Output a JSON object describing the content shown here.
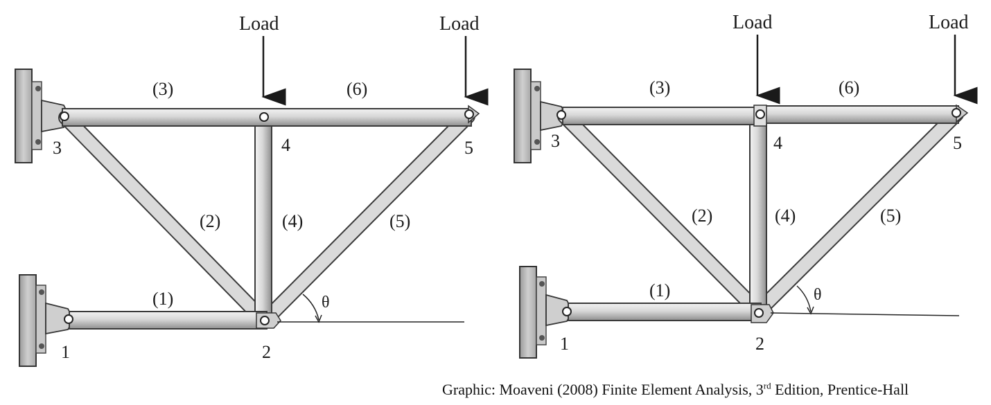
{
  "figures": [
    {
      "nodes": [
        "1",
        "2",
        "3",
        "4",
        "5"
      ],
      "elements": [
        "(1)",
        "(2)",
        "(3)",
        "(4)",
        "(5)",
        "(6)"
      ],
      "loads": [
        "Load",
        "Load"
      ],
      "angle_symbol": "θ"
    },
    {
      "nodes": [
        "1",
        "2",
        "3",
        "4",
        "5"
      ],
      "elements": [
        "(1)",
        "(2)",
        "(3)",
        "(4)",
        "(5)",
        "(6)"
      ],
      "loads": [
        "Load",
        "Load"
      ],
      "angle_symbol": "θ"
    }
  ],
  "caption": {
    "prefix": "Graphic: Moaveni (2008) Finite Element Analysis, 3",
    "superscript": "rd",
    "suffix": " Edition, Prentice-Hall"
  },
  "colors": {
    "member_fill": "#d6d6d6",
    "member_stroke": "#3a3a3a",
    "wall_fill": "#bdbdbd",
    "ink": "#1a1a1a"
  }
}
